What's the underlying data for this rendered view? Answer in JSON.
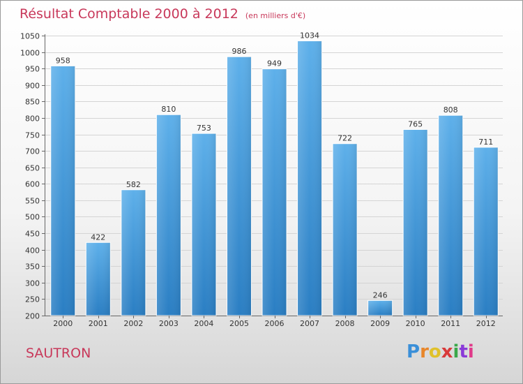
{
  "colors": {
    "accent": "#c8385a",
    "bar_light": "#5eb0ea",
    "bar_dark": "#2a7ec3"
  },
  "header": {
    "title": "Résultat Comptable 2000 à 2012",
    "subtitle": "(en milliers d'€)"
  },
  "footer": {
    "commune": "SAUTRON",
    "logo_text": "Proxiti"
  },
  "chart_data": {
    "type": "bar",
    "title": "Résultat Comptable 2000 à 2012",
    "subtitle": "(en milliers d'€)",
    "xlabel": "",
    "ylabel": "",
    "grid": true,
    "ylim": [
      200,
      1050
    ],
    "yticks": [
      200,
      250,
      300,
      350,
      400,
      450,
      500,
      550,
      600,
      650,
      700,
      750,
      800,
      850,
      900,
      950,
      1000,
      1050
    ],
    "categories": [
      "2000",
      "2001",
      "2002",
      "2003",
      "2004",
      "2005",
      "2006",
      "2007",
      "2008",
      "2009",
      "2010",
      "2011",
      "2012"
    ],
    "values": [
      958,
      422,
      582,
      810,
      753,
      986,
      949,
      1034,
      722,
      246,
      765,
      808,
      711
    ]
  }
}
